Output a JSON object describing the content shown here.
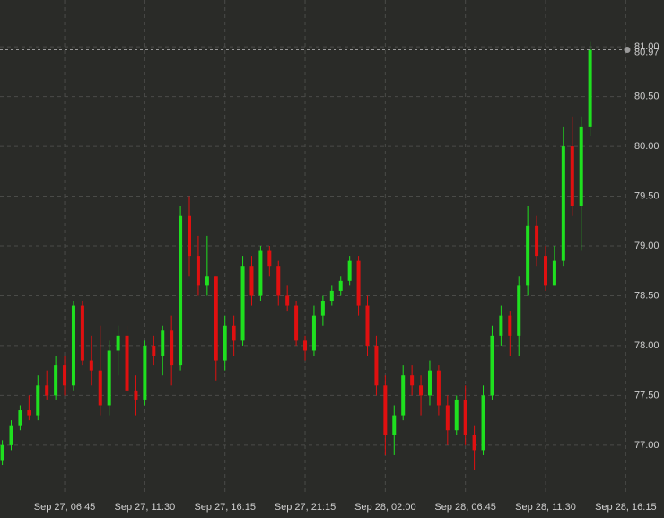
{
  "chart_data": {
    "type": "candlestick",
    "colors": {
      "up": "#1fe01f",
      "down": "#e01010",
      "background": "#2a2b28"
    },
    "grid": true,
    "x": [
      0,
      1,
      2,
      3,
      4,
      5,
      6,
      7,
      8,
      9,
      10,
      11,
      12,
      13,
      14,
      15,
      16,
      17,
      18,
      19,
      20,
      21,
      22,
      23,
      24,
      25,
      26,
      27,
      28,
      29,
      30,
      31,
      32,
      33,
      34,
      35,
      36,
      37,
      38,
      39,
      40,
      41,
      42,
      43,
      44,
      45,
      46,
      47,
      48,
      49,
      50,
      51,
      52,
      53,
      54,
      55,
      56,
      57,
      58,
      59,
      60,
      61,
      62,
      63,
      64,
      65,
      66
    ],
    "open": [
      76.85,
      77.0,
      77.2,
      77.35,
      77.3,
      77.6,
      77.5,
      77.8,
      77.6,
      78.4,
      77.85,
      77.75,
      77.4,
      77.95,
      78.1,
      77.55,
      77.45,
      78.0,
      77.9,
      78.15,
      77.8,
      79.3,
      78.9,
      78.6,
      78.7,
      77.85,
      78.2,
      78.05,
      78.8,
      78.5,
      78.95,
      78.8,
      78.5,
      78.4,
      78.05,
      77.95,
      78.3,
      78.45,
      78.55,
      78.65,
      78.85,
      78.4,
      78.0,
      77.6,
      77.1,
      77.3,
      77.7,
      77.6,
      77.5,
      77.75,
      77.4,
      77.15,
      77.45,
      77.1,
      76.95,
      77.5,
      78.1,
      78.3,
      78.1,
      78.6,
      79.2,
      78.9,
      78.6,
      78.85,
      80.0,
      79.4,
      80.2
    ],
    "high": [
      77.05,
      77.25,
      77.4,
      77.5,
      77.7,
      77.75,
      77.9,
      77.9,
      78.45,
      78.45,
      78.1,
      78.2,
      78.05,
      78.2,
      78.2,
      77.7,
      78.05,
      78.1,
      78.2,
      78.3,
      79.4,
      79.5,
      79.1,
      79.1,
      78.7,
      78.3,
      78.3,
      78.9,
      78.9,
      79.0,
      79.0,
      78.85,
      78.6,
      78.45,
      78.1,
      78.4,
      78.5,
      78.6,
      78.7,
      78.9,
      78.9,
      78.5,
      78.1,
      77.7,
      77.4,
      77.8,
      77.8,
      77.7,
      77.85,
      77.8,
      77.5,
      77.5,
      77.6,
      77.2,
      77.6,
      78.2,
      78.4,
      78.35,
      78.7,
      79.4,
      79.3,
      79.0,
      79.0,
      80.2,
      80.3,
      80.3,
      81.05
    ],
    "low": [
      76.8,
      76.95,
      77.15,
      77.25,
      77.25,
      77.45,
      77.45,
      77.5,
      77.55,
      77.8,
      77.6,
      77.3,
      77.3,
      77.7,
      77.5,
      77.3,
      77.4,
      77.8,
      77.7,
      77.6,
      77.75,
      78.7,
      78.5,
      78.5,
      77.65,
      77.75,
      77.9,
      78.0,
      78.4,
      78.45,
      78.7,
      78.4,
      78.35,
      78.0,
      77.85,
      77.9,
      78.2,
      78.4,
      78.5,
      78.6,
      78.3,
      77.9,
      77.5,
      76.9,
      76.9,
      77.25,
      77.5,
      77.3,
      77.4,
      77.3,
      77.0,
      77.1,
      77.0,
      76.75,
      76.9,
      77.45,
      78.0,
      77.9,
      77.9,
      78.5,
      78.8,
      78.55,
      78.6,
      78.8,
      79.3,
      78.95,
      80.1
    ],
    "close": [
      77.0,
      77.2,
      77.35,
      77.3,
      77.6,
      77.5,
      77.8,
      77.6,
      78.4,
      77.85,
      77.75,
      77.4,
      77.95,
      78.1,
      77.55,
      77.45,
      78.0,
      77.9,
      78.15,
      77.8,
      79.3,
      78.9,
      78.6,
      78.7,
      77.85,
      78.2,
      78.05,
      78.8,
      78.5,
      78.95,
      78.8,
      78.5,
      78.4,
      78.05,
      77.95,
      78.3,
      78.45,
      78.55,
      78.65,
      78.85,
      78.4,
      78.0,
      77.6,
      77.1,
      77.3,
      77.7,
      77.6,
      77.5,
      77.75,
      77.4,
      77.15,
      77.45,
      77.1,
      76.95,
      77.5,
      78.1,
      78.3,
      78.1,
      78.6,
      79.2,
      78.9,
      78.6,
      78.85,
      80.0,
      79.4,
      80.2,
      80.97
    ],
    "last_price": {
      "value": 80.97,
      "label": "80.97"
    },
    "xlim": [
      -0.26,
      74.3
    ],
    "ylim": [
      76.53,
      81.47
    ],
    "xticks": [
      {
        "value": 7,
        "label": "Sep 27, 06:45"
      },
      {
        "value": 16,
        "label": "Sep 27, 11:30"
      },
      {
        "value": 25,
        "label": "Sep 27, 16:15"
      },
      {
        "value": 34,
        "label": "Sep 27, 21:15"
      },
      {
        "value": 43,
        "label": "Sep 28, 02:00"
      },
      {
        "value": 52,
        "label": "Sep 28, 06:45"
      },
      {
        "value": 61,
        "label": "Sep 28, 11:30"
      },
      {
        "value": 70,
        "label": "Sep 28, 16:15"
      }
    ],
    "yticks": [
      {
        "value": 77,
        "label": "77.00"
      },
      {
        "value": 77.5,
        "label": "77.50"
      },
      {
        "value": 78,
        "label": "78.00"
      },
      {
        "value": 78.5,
        "label": "78.50"
      },
      {
        "value": 79,
        "label": "79.00"
      },
      {
        "value": 79.5,
        "label": "79.50"
      },
      {
        "value": 80,
        "label": "80.00"
      },
      {
        "value": 80.5,
        "label": "80.50"
      },
      {
        "value": 81,
        "label": "81.00"
      }
    ]
  }
}
